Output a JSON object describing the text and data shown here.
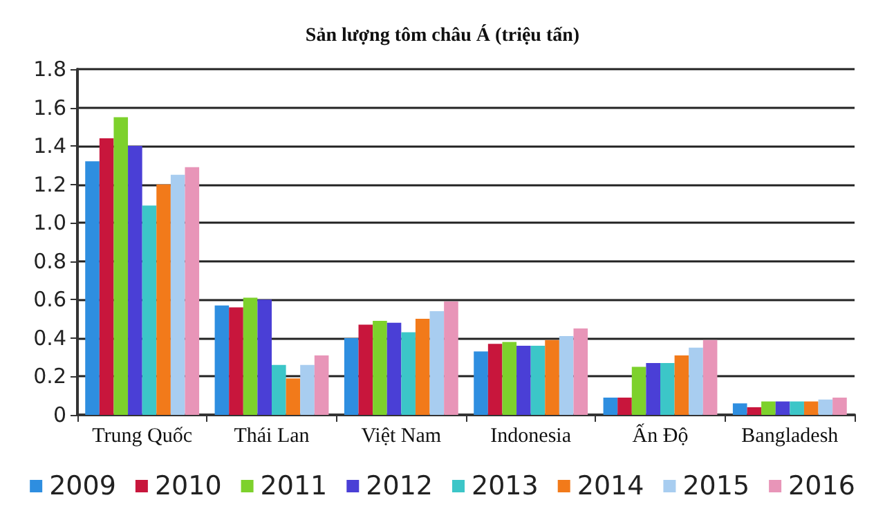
{
  "chart_data": {
    "type": "bar",
    "title": "Sản lượng tôm châu Á (triệu tấn)",
    "categories": [
      "Trung Quốc",
      "Thái Lan",
      "Việt Nam",
      "Indonesia",
      "Ấn Độ",
      "Bangladesh"
    ],
    "series": [
      {
        "name": "2009",
        "color": "#2e8ee0",
        "values": [
          1.32,
          0.57,
          0.4,
          0.33,
          0.09,
          0.06
        ]
      },
      {
        "name": "2010",
        "color": "#c8163c",
        "values": [
          1.44,
          0.56,
          0.47,
          0.37,
          0.09,
          0.04
        ]
      },
      {
        "name": "2011",
        "color": "#7dd12c",
        "values": [
          1.55,
          0.61,
          0.49,
          0.38,
          0.25,
          0.07
        ]
      },
      {
        "name": "2012",
        "color": "#4a3fd6",
        "values": [
          1.4,
          0.6,
          0.48,
          0.36,
          0.27,
          0.07
        ]
      },
      {
        "name": "2013",
        "color": "#3cc6c8",
        "values": [
          1.09,
          0.26,
          0.43,
          0.36,
          0.27,
          0.07
        ]
      },
      {
        "name": "2014",
        "color": "#f27a1a",
        "values": [
          1.2,
          0.19,
          0.5,
          0.39,
          0.31,
          0.07
        ]
      },
      {
        "name": "2015",
        "color": "#a8cdf0",
        "values": [
          1.25,
          0.26,
          0.54,
          0.41,
          0.35,
          0.08
        ]
      },
      {
        "name": "2016",
        "color": "#e895b8",
        "values": [
          1.29,
          0.31,
          0.59,
          0.45,
          0.39,
          0.09
        ]
      }
    ],
    "ylim": [
      0,
      1.8
    ],
    "yticks": [
      0,
      0.2,
      0.4,
      0.6,
      0.8,
      {
        "value": 1.0,
        "label": "1.0"
      },
      1.2,
      1.4,
      1.6,
      1.8
    ],
    "grid": "y",
    "legend": "bottom"
  }
}
